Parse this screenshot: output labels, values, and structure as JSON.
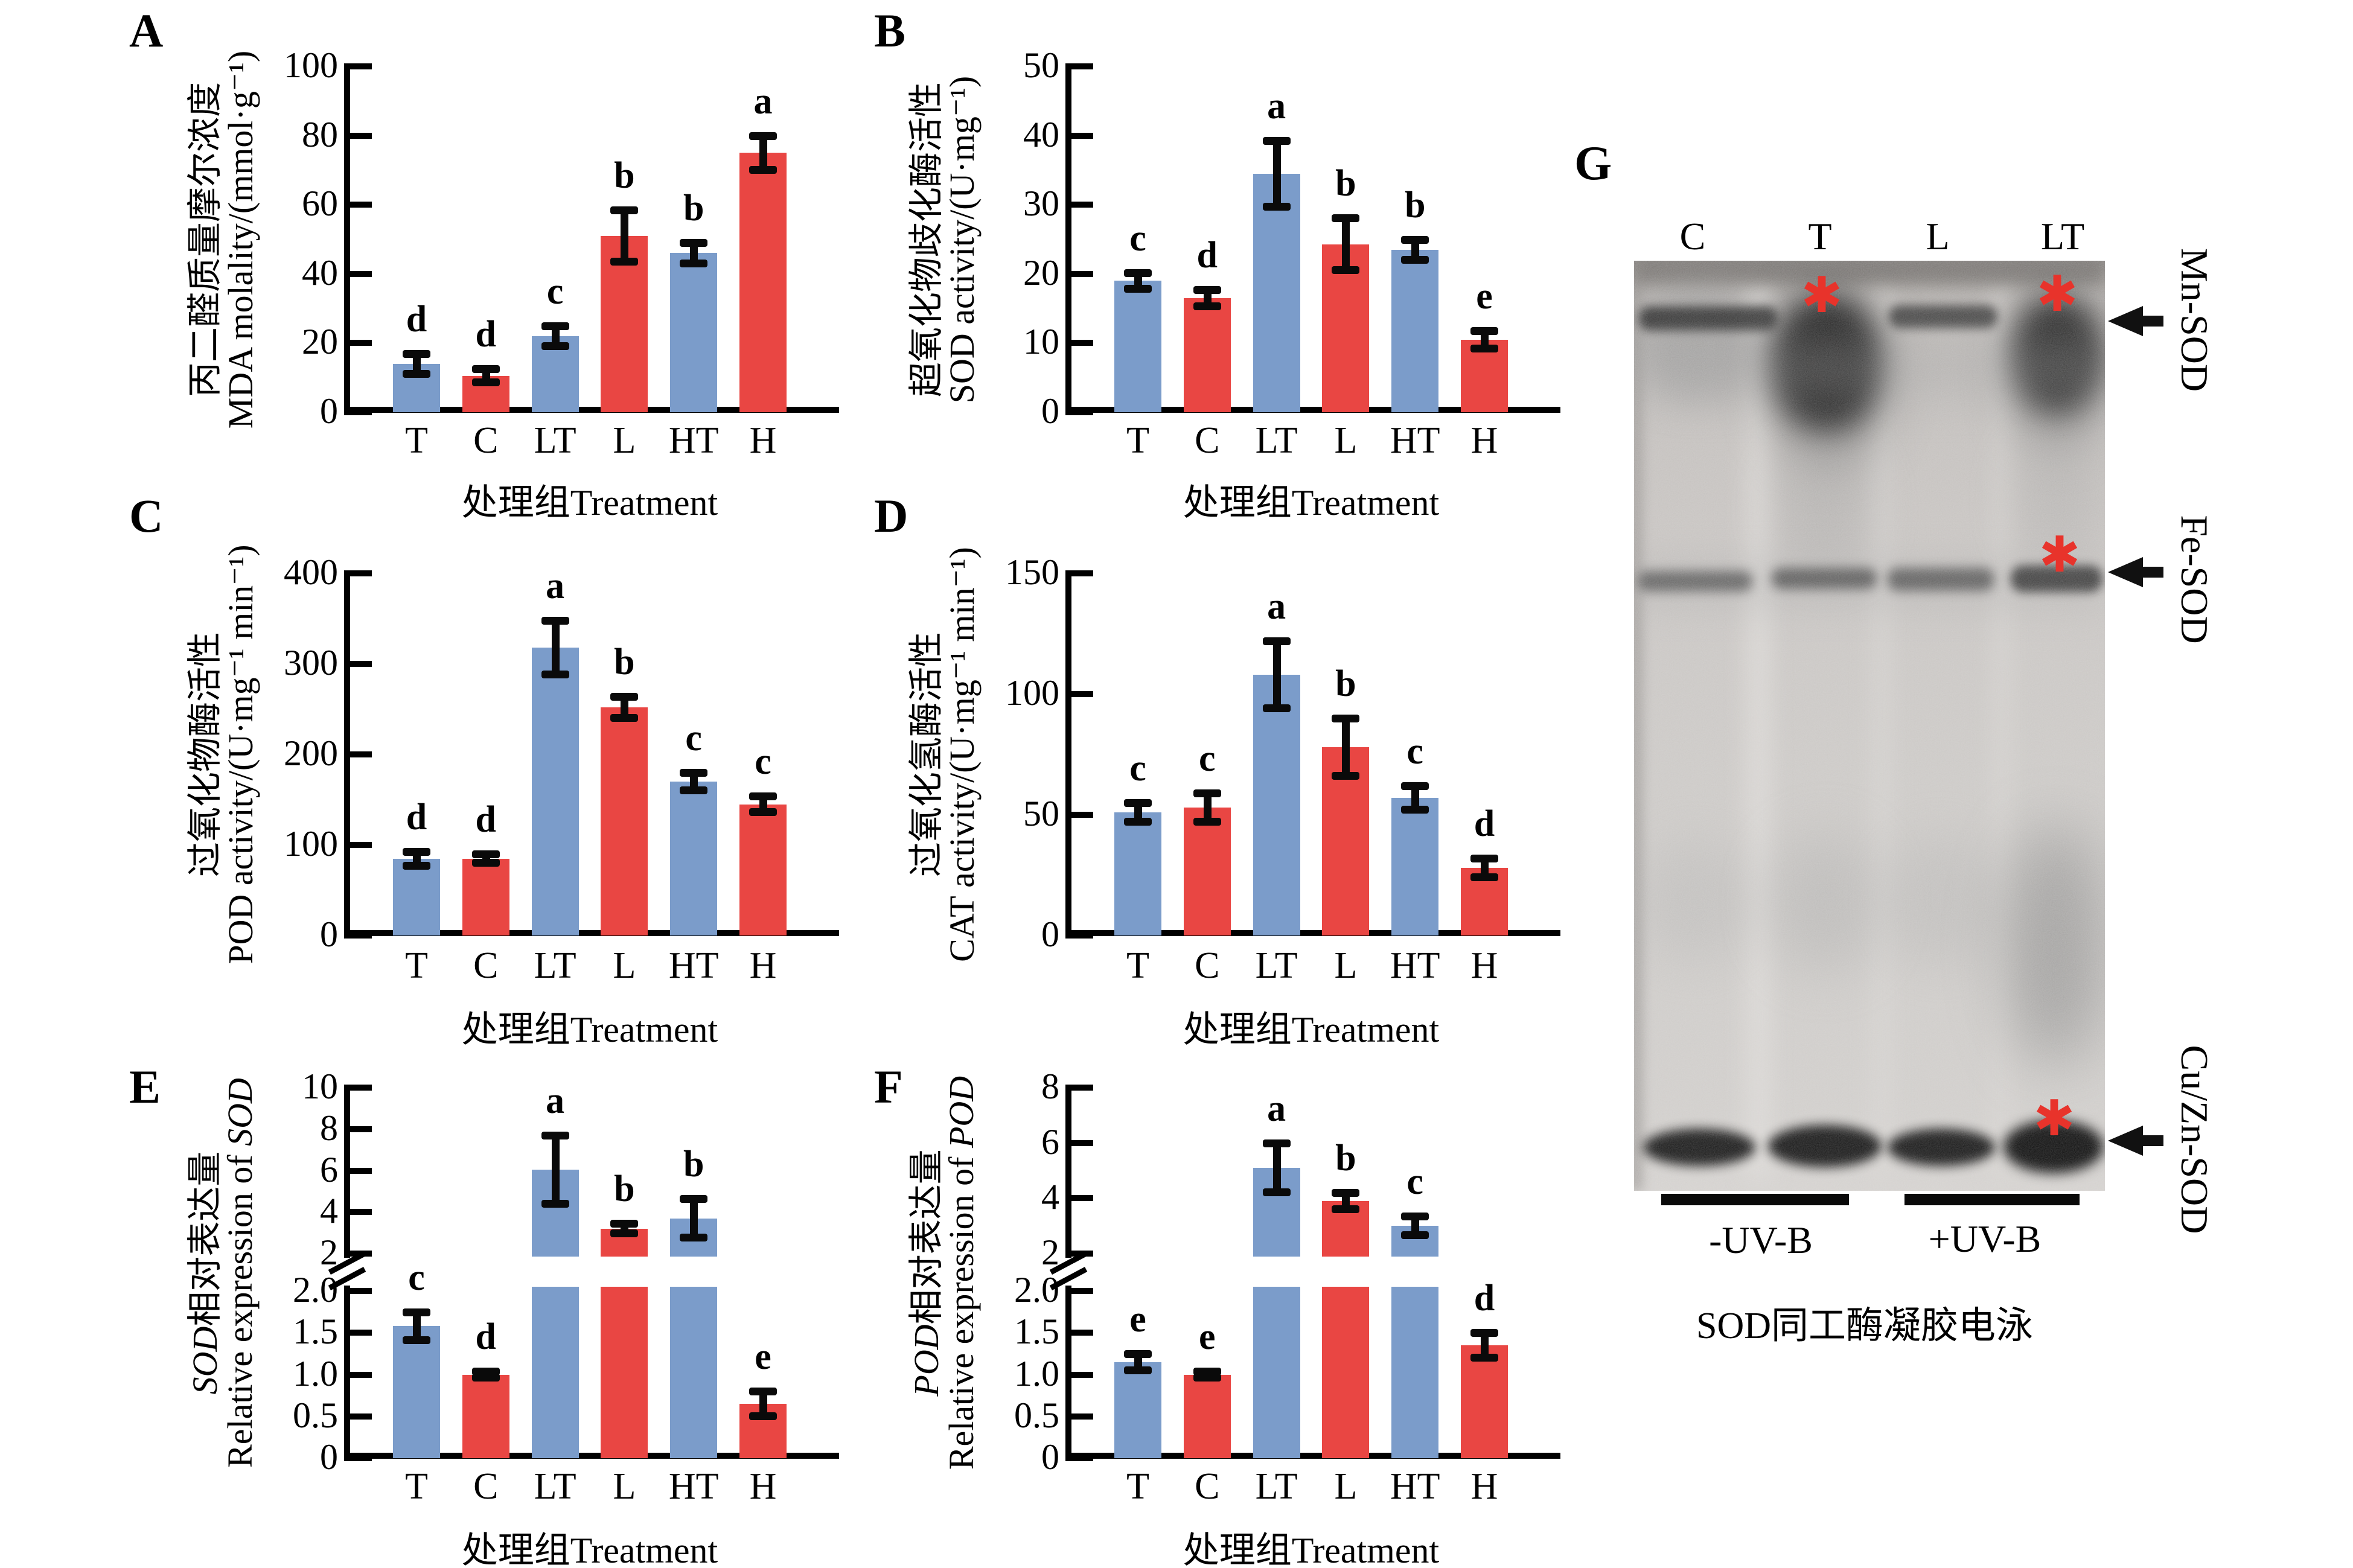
{
  "figure": {
    "background": "#ffffff",
    "bar_blue": "#7b9cca",
    "bar_red": "#e94643",
    "asterisk_red": "#e8332b",
    "xlabel": "处理组Treatment",
    "categories": [
      "T",
      "C",
      "LT",
      "L",
      "HT",
      "H"
    ]
  },
  "chart_data": [
    {
      "id": "A",
      "type": "bar",
      "panel": "A",
      "ylabel_cn": "丙二醛质量摩尔浓度",
      "ylabel_en": "MDA molality/(mmol·g⁻¹)",
      "xlabel": "处理组Treatment",
      "categories": [
        "T",
        "C",
        "LT",
        "L",
        "HT",
        "H"
      ],
      "values": [
        14,
        10.5,
        22,
        51,
        46,
        75
      ],
      "errors": [
        3,
        2,
        3,
        7.5,
        3,
        5
      ],
      "sig_letters": [
        "d",
        "d",
        "c",
        "b",
        "b",
        "a"
      ],
      "ylim": [
        0,
        100
      ],
      "yticks": [
        "0",
        "20",
        "40",
        "60",
        "80",
        "100"
      ]
    },
    {
      "id": "B",
      "type": "bar",
      "panel": "B",
      "ylabel_cn": "超氧化物歧化酶活性",
      "ylabel_en": "SOD activity/(U·mg⁻¹)",
      "xlabel": "处理组Treatment",
      "categories": [
        "T",
        "C",
        "LT",
        "L",
        "HT",
        "H"
      ],
      "values": [
        19,
        16.5,
        34.5,
        24.3,
        23.5,
        10.5
      ],
      "errors": [
        1.2,
        1.2,
        4.8,
        3.8,
        1.5,
        1.3
      ],
      "sig_letters": [
        "c",
        "d",
        "a",
        "b",
        "b",
        "e"
      ],
      "ylim": [
        0,
        50
      ],
      "yticks": [
        "0",
        "10",
        "20",
        "30",
        "40",
        "50"
      ]
    },
    {
      "id": "C",
      "type": "bar",
      "panel": "C",
      "ylabel_cn": "过氧化物酶活性",
      "ylabel_en": "POD activity/(U·mg⁻¹ min⁻¹)",
      "xlabel": "处理组Treatment",
      "categories": [
        "T",
        "C",
        "LT",
        "L",
        "HT",
        "H"
      ],
      "values": [
        85,
        85,
        318,
        252,
        170,
        145
      ],
      "errors": [
        8,
        5,
        30,
        12,
        10,
        9
      ],
      "sig_letters": [
        "d",
        "d",
        "a",
        "b",
        "c",
        "c"
      ],
      "ylim": [
        0,
        400
      ],
      "yticks": [
        "0",
        "100",
        "200",
        "300",
        "400"
      ]
    },
    {
      "id": "D",
      "type": "bar",
      "panel": "D",
      "ylabel_cn": "过氧化氢酶活性",
      "ylabel_en": "CAT activity/(U·mg⁻¹ min⁻¹)",
      "xlabel": "处理组Treatment",
      "categories": [
        "T",
        "C",
        "LT",
        "L",
        "HT",
        "H"
      ],
      "values": [
        51,
        53,
        108,
        78,
        57,
        28
      ],
      "errors": [
        4,
        6,
        14,
        12,
        5,
        4
      ],
      "sig_letters": [
        "c",
        "c",
        "a",
        "b",
        "c",
        "d"
      ],
      "ylim": [
        0,
        150
      ],
      "yticks": [
        "0",
        "50",
        "100",
        "150"
      ]
    },
    {
      "id": "E",
      "type": "bar",
      "panel": "E",
      "ylabel_cn_italic": "SOD",
      "ylabel_cn": "相对表达量",
      "ylabel_en_prefix": "Relative expression of ",
      "ylabel_en_italic": "SOD",
      "xlabel": "处理组Treatment",
      "categories": [
        "T",
        "C",
        "LT",
        "L",
        "HT",
        "H"
      ],
      "values": [
        1.58,
        1.0,
        6.05,
        3.2,
        3.7,
        0.65
      ],
      "errors": [
        0.17,
        0.04,
        1.65,
        0.25,
        0.95,
        0.15
      ],
      "sig_letters": [
        "c",
        "d",
        "a",
        "b",
        "b",
        "e"
      ],
      "broken_axis": {
        "lower_max": 2,
        "upper_max": 10,
        "lower_ticks": [
          "0",
          "0.5",
          "1.0",
          "1.5",
          "2.0"
        ],
        "upper_ticks": [
          "2",
          "4",
          "6",
          "8",
          "10"
        ]
      }
    },
    {
      "id": "F",
      "type": "bar",
      "panel": "F",
      "ylabel_cn_italic": "POD",
      "ylabel_cn": "相对表达量",
      "ylabel_en_prefix": "Relative expression of ",
      "ylabel_en_italic": "POD",
      "xlabel": "处理组Treatment",
      "categories": [
        "T",
        "C",
        "LT",
        "L",
        "HT",
        "H"
      ],
      "values": [
        1.15,
        1.0,
        5.1,
        3.9,
        3.0,
        1.35
      ],
      "errors": [
        0.1,
        0.04,
        0.9,
        0.3,
        0.35,
        0.15
      ],
      "sig_letters": [
        "e",
        "e",
        "a",
        "b",
        "c",
        "d"
      ],
      "broken_axis": {
        "lower_max": 2,
        "upper_max": 8,
        "lower_ticks": [
          "0",
          "0.5",
          "1.0",
          "1.5",
          "2.0"
        ],
        "upper_ticks": [
          "2",
          "4",
          "6",
          "8"
        ]
      }
    }
  ],
  "gel": {
    "panel": "G",
    "lane_labels": [
      "C",
      "T",
      "L",
      "LT"
    ],
    "band_labels": [
      "Mn-SOD",
      "Fe-SOD",
      "Cu/Zn-SOD"
    ],
    "group_labels": [
      "-UV-B",
      "+UV-B"
    ],
    "caption": "SOD同工酶凝胶电泳",
    "asterisk_glyph": "✱"
  }
}
